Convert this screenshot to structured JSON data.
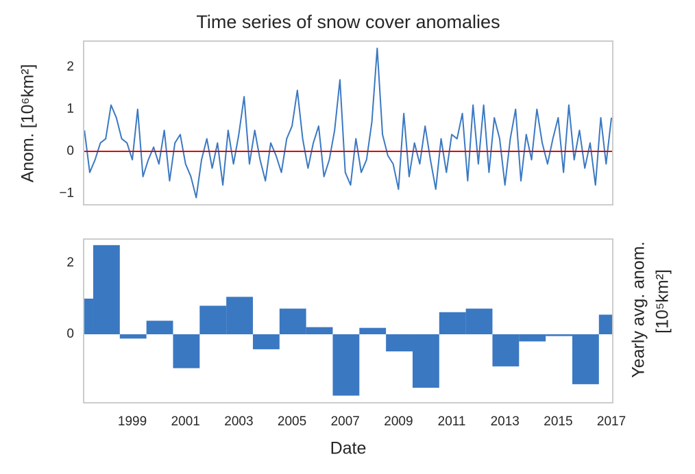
{
  "chart_data": [
    {
      "type": "line",
      "title": "Time series of snow cover anomalies",
      "ylabel": "Anom. [10⁶km²]",
      "x": [
        1997.2,
        1997.4,
        1997.6,
        1997.8,
        1998.0,
        1998.2,
        1998.4,
        1998.6,
        1998.8,
        1999.0,
        1999.2,
        1999.4,
        1999.6,
        1999.8,
        2000.0,
        2000.2,
        2000.4,
        2000.6,
        2000.8,
        2001.0,
        2001.2,
        2001.4,
        2001.6,
        2001.8,
        2002.0,
        2002.2,
        2002.4,
        2002.6,
        2002.8,
        2003.0,
        2003.2,
        2003.4,
        2003.6,
        2003.8,
        2004.0,
        2004.2,
        2004.4,
        2004.6,
        2004.8,
        2005.0,
        2005.2,
        2005.4,
        2005.6,
        2005.8,
        2006.0,
        2006.2,
        2006.4,
        2006.6,
        2006.8,
        2007.0,
        2007.2,
        2007.4,
        2007.6,
        2007.8,
        2008.0,
        2008.2,
        2008.4,
        2008.6,
        2008.8,
        2009.0,
        2009.2,
        2009.4,
        2009.6,
        2009.8,
        2010.0,
        2010.2,
        2010.4,
        2010.6,
        2010.8,
        2011.0,
        2011.2,
        2011.4,
        2011.6,
        2011.8,
        2012.0,
        2012.2,
        2012.4,
        2012.6,
        2012.8,
        2013.0,
        2013.2,
        2013.4,
        2013.6,
        2013.8,
        2014.0,
        2014.2,
        2014.4,
        2014.6,
        2014.8,
        2015.0,
        2015.2,
        2015.4,
        2015.6,
        2015.8,
        2016.0,
        2016.2,
        2016.4,
        2016.6,
        2016.8,
        2017.0
      ],
      "values": [
        0.5,
        -0.5,
        -0.2,
        0.2,
        0.3,
        1.1,
        0.8,
        0.3,
        0.2,
        -0.2,
        1.0,
        -0.6,
        -0.2,
        0.1,
        -0.3,
        0.5,
        -0.7,
        0.2,
        0.4,
        -0.3,
        -0.6,
        -1.1,
        -0.2,
        0.3,
        -0.4,
        0.2,
        -0.8,
        0.5,
        -0.3,
        0.4,
        1.3,
        -0.3,
        0.5,
        -0.2,
        -0.7,
        0.2,
        -0.1,
        -0.5,
        0.3,
        0.6,
        1.45,
        0.3,
        -0.4,
        0.2,
        0.6,
        -0.6,
        -0.2,
        0.5,
        1.7,
        -0.5,
        -0.8,
        0.3,
        -0.5,
        -0.2,
        0.7,
        2.45,
        0.4,
        -0.1,
        -0.3,
        -0.9,
        0.9,
        -0.6,
        0.2,
        -0.3,
        0.6,
        -0.2,
        -0.9,
        0.3,
        -0.5,
        0.4,
        0.3,
        0.9,
        -0.7,
        1.1,
        -0.3,
        1.1,
        -0.5,
        0.8,
        0.3,
        -0.8,
        0.3,
        1.0,
        -0.7,
        0.4,
        -0.2,
        1.0,
        0.2,
        -0.3,
        0.3,
        0.8,
        -0.5,
        1.1,
        -0.2,
        0.5,
        -0.4,
        0.2,
        -0.8,
        0.8,
        -0.3,
        0.8
      ],
      "color": "#3a78c2",
      "hline": {
        "value": 0,
        "color": "#e00000"
      },
      "xlim": [
        1997.17,
        2017.05
      ],
      "ylim": [
        -1.27,
        2.62
      ],
      "yticks": [
        {
          "value": -1,
          "label": "−1"
        },
        0,
        1,
        2
      ]
    },
    {
      "type": "histogram",
      "xlabel": "Date",
      "ylabel": [
        "Yearly avg. anom.",
        "[10⁵km²]"
      ],
      "bins": [
        1996.53,
        1997.53,
        1998.53,
        1999.53,
        2000.53,
        2001.53,
        2002.53,
        2003.53,
        2004.53,
        2005.53,
        2006.53,
        2007.53,
        2008.53,
        2009.53,
        2010.53,
        2011.53,
        2012.53,
        2013.53,
        2014.53,
        2015.53,
        2016.53,
        2017.53
      ],
      "values": [
        1.0,
        2.5,
        -0.12,
        0.38,
        -0.95,
        0.8,
        1.05,
        -0.42,
        0.72,
        0.2,
        -1.72,
        0.18,
        -0.48,
        -1.5,
        0.62,
        0.72,
        -0.9,
        -0.2,
        -0.05,
        -1.4,
        0.55
      ],
      "color": "#3a78c2",
      "xlim": [
        1997.17,
        2017.05
      ],
      "ylim": [
        -1.92,
        2.67
      ],
      "xticks": [
        1999,
        2001,
        2003,
        2005,
        2007,
        2009,
        2011,
        2013,
        2015,
        2017
      ],
      "yticks": [
        0,
        2
      ]
    }
  ]
}
